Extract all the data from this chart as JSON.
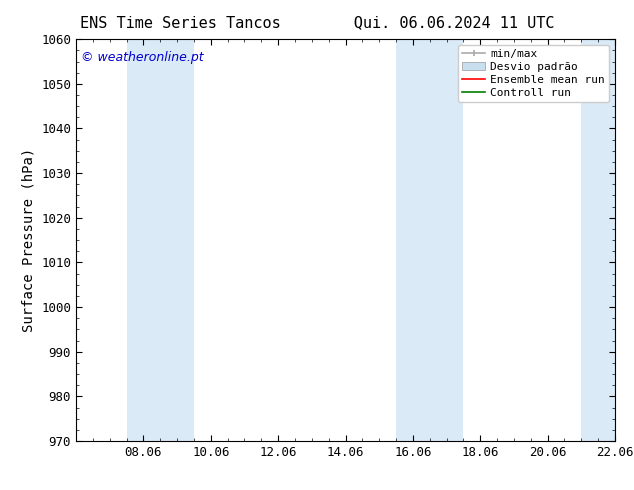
{
  "title_left": "ENS Time Series Tancos",
  "title_right": "Qui. 06.06.2024 11 UTC",
  "ylabel": "Surface Pressure (hPa)",
  "ylim": [
    970,
    1060
  ],
  "yticks": [
    970,
    980,
    990,
    1000,
    1010,
    1020,
    1030,
    1040,
    1050,
    1060
  ],
  "xtick_labels": [
    "08.06",
    "10.06",
    "12.06",
    "14.06",
    "16.06",
    "18.06",
    "20.06",
    "22.06"
  ],
  "xtick_positions": [
    2,
    4,
    6,
    8,
    10,
    12,
    14,
    16
  ],
  "xlim": [
    0,
    16
  ],
  "watermark": "© weatheronline.pt",
  "watermark_color": "#0000cc",
  "background_color": "#ffffff",
  "shaded_bands": [
    {
      "xstart": 1.5,
      "xend": 3.5,
      "color": "#daeaf7"
    },
    {
      "xstart": 9.5,
      "xend": 11.5,
      "color": "#daeaf7"
    },
    {
      "xstart": 15.0,
      "xend": 16.5,
      "color": "#daeaf7"
    }
  ],
  "minmax_color": "#aaaaaa",
  "desvio_color": "#c8dff0",
  "ensemble_color": "#ff0000",
  "control_color": "#008000",
  "title_fontsize": 11,
  "tick_fontsize": 9,
  "ylabel_fontsize": 10,
  "legend_fontsize": 8,
  "watermark_fontsize": 9
}
